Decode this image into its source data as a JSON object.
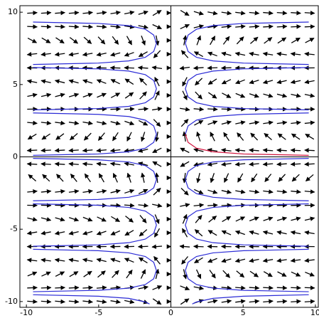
{
  "chart_data": {
    "type": "line",
    "xlim": [
      -10.45,
      10.2
    ],
    "ylim": [
      -10.4,
      10.45
    ],
    "xticks": [
      -10,
      -5,
      0,
      5,
      10
    ],
    "yticks": [
      -10,
      -5,
      0,
      5,
      10
    ],
    "series": [
      {
        "color": "#2b2bd6",
        "x": [
          -9.54,
          -5.03,
          -2.92,
          -1.77,
          -1.19,
          -1.0,
          -1.19,
          -1.77,
          -2.92,
          -5.03,
          -9.54
        ],
        "y": [
          -9.32,
          -9.225,
          -9.075,
          -8.825,
          -8.425,
          -7.855,
          -7.285,
          -6.885,
          -6.635,
          -6.485,
          -6.388
        ]
      },
      {
        "color": "#2b2bd6",
        "x": [
          9.54,
          5.03,
          2.92,
          1.77,
          1.19,
          1.0,
          1.19,
          1.77,
          2.92,
          5.03,
          9.54
        ],
        "y": [
          -9.32,
          -9.225,
          -9.075,
          -8.825,
          -8.425,
          -7.855,
          -7.285,
          -6.885,
          -6.635,
          -6.485,
          -6.388
        ]
      },
      {
        "color": "#2b2bd6",
        "x": [
          -9.54,
          -5.03,
          -2.92,
          -1.77,
          -1.19,
          -1.0,
          -1.19,
          -1.77,
          -2.92,
          -5.03,
          -9.54
        ],
        "y": [
          -6.178,
          -6.083,
          -5.933,
          -5.683,
          -5.283,
          -4.713,
          -4.143,
          -3.743,
          -3.493,
          -3.343,
          -3.246
        ]
      },
      {
        "color": "#2b2bd6",
        "x": [
          9.54,
          5.03,
          2.92,
          1.77,
          1.19,
          1.0,
          1.19,
          1.77,
          2.92,
          5.03,
          9.54
        ],
        "y": [
          -6.178,
          -6.083,
          -5.933,
          -5.683,
          -5.283,
          -4.713,
          -4.143,
          -3.743,
          -3.493,
          -3.343,
          -3.246
        ]
      },
      {
        "color": "#2b2bd6",
        "x": [
          -9.54,
          -5.03,
          -2.92,
          -1.77,
          -1.19,
          -1.0,
          -1.19,
          -1.77,
          -2.92,
          -5.03,
          -9.54
        ],
        "y": [
          -3.037,
          -2.942,
          -2.792,
          -2.542,
          -2.142,
          -1.572,
          -1.002,
          -0.602,
          -0.352,
          -0.202,
          -0.105
        ]
      },
      {
        "color": "#2b2bd6",
        "x": [
          9.54,
          5.03,
          2.92,
          1.77,
          1.19,
          1.0,
          1.19,
          1.77,
          2.92,
          5.03,
          9.54
        ],
        "y": [
          -3.037,
          -2.942,
          -2.792,
          -2.542,
          -2.142,
          -1.572,
          -1.002,
          -0.602,
          -0.352,
          -0.202,
          -0.105
        ]
      },
      {
        "color": "#2b2bd6",
        "x": [
          -9.54,
          -5.03,
          -2.92,
          -1.77,
          -1.19,
          -1.0,
          -1.19,
          -1.77,
          -2.92,
          -5.03,
          -9.54
        ],
        "y": [
          0.105,
          0.2,
          0.35,
          0.6,
          1.0,
          1.57,
          2.14,
          2.54,
          2.79,
          2.94,
          3.037
        ]
      },
      {
        "color": "#2b2bd6",
        "x": [
          1.0,
          1.19,
          1.77,
          2.92,
          5.03,
          9.54
        ],
        "y": [
          1.57,
          2.14,
          2.54,
          2.79,
          2.94,
          3.037
        ]
      },
      {
        "color": "#d0103a",
        "x": [
          9.54,
          5.03,
          2.92,
          1.77,
          1.19,
          1.0
        ],
        "y": [
          0.105,
          0.2,
          0.35,
          0.6,
          1.0,
          1.57
        ]
      },
      {
        "color": "#2b2bd6",
        "x": [
          -9.54,
          -5.03,
          -2.92,
          -1.77,
          -1.19,
          -1.0,
          -1.19,
          -1.77,
          -2.92,
          -5.03,
          -9.54
        ],
        "y": [
          3.247,
          3.342,
          3.492,
          3.742,
          4.142,
          4.712,
          5.282,
          5.682,
          5.932,
          6.082,
          6.179
        ]
      },
      {
        "color": "#2b2bd6",
        "x": [
          9.54,
          5.03,
          2.92,
          1.77,
          1.19,
          1.0,
          1.19,
          1.77,
          2.92,
          5.03,
          9.54
        ],
        "y": [
          3.247,
          3.342,
          3.492,
          3.742,
          4.142,
          4.712,
          5.282,
          5.682,
          5.932,
          6.082,
          6.179
        ]
      },
      {
        "color": "#2b2bd6",
        "x": [
          -9.54,
          -5.03,
          -2.92,
          -1.77,
          -1.19,
          -1.0,
          -1.19,
          -1.77,
          -2.92,
          -5.03,
          -9.54
        ],
        "y": [
          6.388,
          6.483,
          6.633,
          6.883,
          7.283,
          7.853,
          8.423,
          8.823,
          9.073,
          9.223,
          9.32
        ]
      },
      {
        "color": "#2b2bd6",
        "x": [
          9.54,
          5.03,
          2.92,
          1.77,
          1.19,
          1.0,
          1.19,
          1.77,
          2.92,
          5.03,
          9.54
        ],
        "y": [
          6.388,
          6.483,
          6.633,
          6.883,
          7.283,
          7.853,
          8.423,
          8.823,
          9.073,
          9.223,
          9.32
        ]
      },
      {
        "color": "#2b2bd6",
        "x": [
          -9.54,
          -5.03,
          -2.92,
          -1.77,
          -1.48
        ],
        "y": [
          -9.53,
          -9.63,
          -9.78,
          -10.03,
          -10.17
        ]
      },
      {
        "color": "#2b2bd6",
        "x": [
          9.54,
          5.03,
          2.92,
          1.77,
          1.48
        ],
        "y": [
          -9.53,
          -9.63,
          -9.78,
          -10.03,
          -10.17
        ]
      }
    ]
  }
}
